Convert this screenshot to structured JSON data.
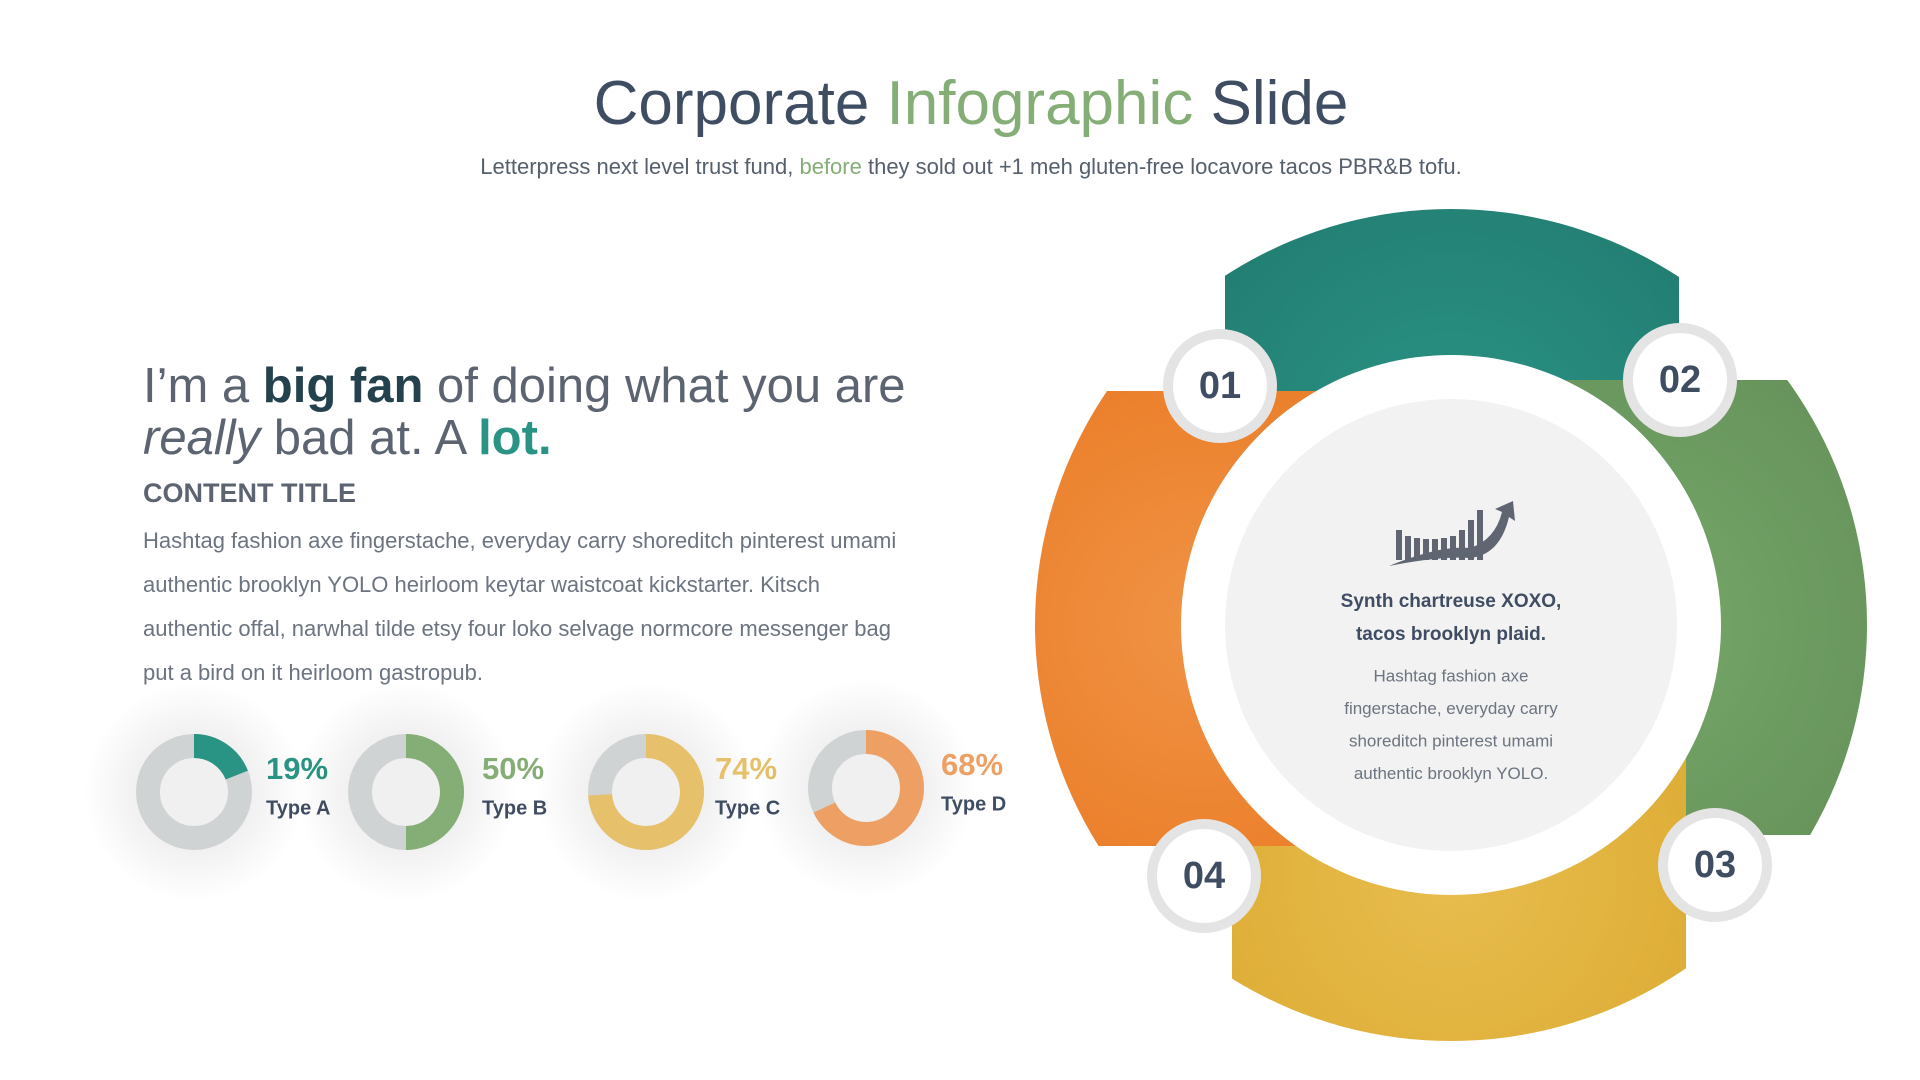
{
  "header": {
    "title": [
      {
        "text": "Corporate ",
        "accent": false
      },
      {
        "text": "Infographic",
        "accent": true
      },
      {
        "text": " Slide",
        "accent": false
      }
    ],
    "subtitle": [
      {
        "text": "Letterpress next level trust fund, ",
        "accent": false
      },
      {
        "text": "before",
        "accent": true
      },
      {
        "text": " they sold out +1 meh gluten-free locavore tacos PBR&B tofu.",
        "accent": false
      }
    ]
  },
  "headline": {
    "line1": [
      {
        "text": "I’m a ",
        "style": "plain"
      },
      {
        "text": "big fan",
        "style": "bold"
      },
      {
        "text": " of doing what you are",
        "style": "plain"
      }
    ],
    "line2": [
      {
        "text": "really",
        "style": "italic"
      },
      {
        "text": " bad at. A ",
        "style": "plain"
      },
      {
        "text": "lot",
        "style": "accent"
      },
      {
        "text": ".",
        "style": "accent"
      }
    ]
  },
  "content": {
    "title": "CONTENT TITLE",
    "lines": [
      "Hashtag fashion axe fingerstache, everyday carry shoreditch pinterest umami",
      "authentic brooklyn YOLO heirloom keytar waistcoat kickstarter. Kitsch",
      "authentic offal, narwhal tilde etsy four loko selvage normcore messenger bag",
      "put a bird on it heirloom gastropub."
    ]
  },
  "donuts": [
    {
      "value": 19,
      "value_label": "19%",
      "label": "Type A",
      "color": "#2a9484"
    },
    {
      "value": 50,
      "value_label": "50%",
      "label": "Type B",
      "color": "#85ad76"
    },
    {
      "value": 74,
      "value_label": "74%",
      "label": "Type C",
      "color": "#e6c06a"
    },
    {
      "value": 68,
      "value_label": "68%",
      "label": "Type D",
      "color": "#eea064"
    }
  ],
  "cycle": {
    "steps": [
      "01",
      "02",
      "03",
      "04"
    ],
    "center_title": [
      "Synth chartreuse XOXO,",
      "tacos brooklyn plaid."
    ],
    "center_lines": [
      "Hashtag fashion axe",
      "fingerstache, everyday carry",
      "shoreditch pinterest umami",
      "authentic brooklyn YOLO."
    ]
  }
}
